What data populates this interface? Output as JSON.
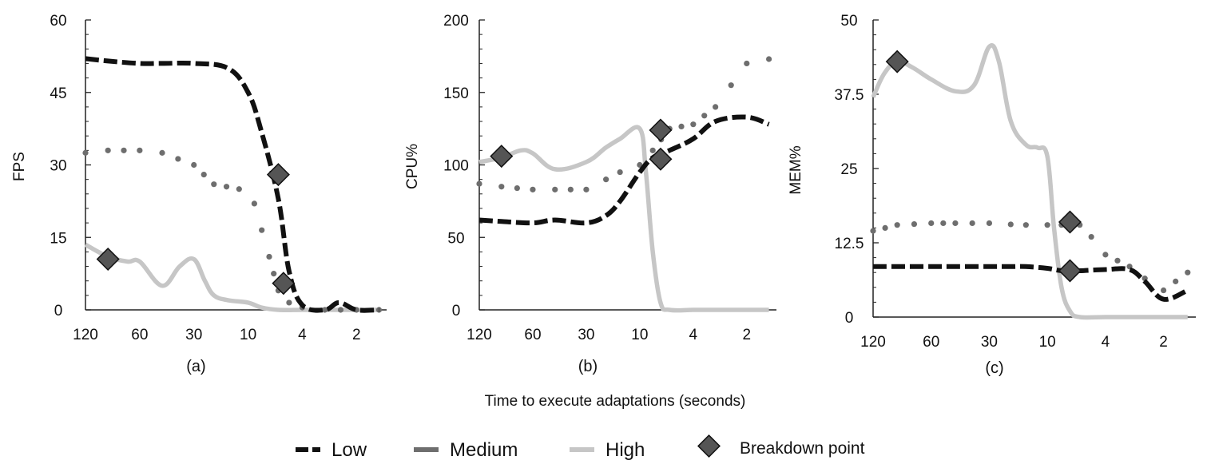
{
  "figure": {
    "xlabel": "Time to execute adaptations (seconds)",
    "colors": {
      "low": "#111111",
      "medium": "#6e6e6e",
      "high": "#c6c6c6",
      "breakdown": "#555555"
    },
    "legend": {
      "low": "Low",
      "medium": "Medium",
      "high": "High",
      "breakdown": "Breakdown point",
      "placement": "bottom-center"
    }
  },
  "chart_data": [
    {
      "type": "line",
      "subplot_label": "(a)",
      "ylabel": "FPS",
      "ylim": [
        0,
        60
      ],
      "yticks": [
        "0",
        "15",
        "30",
        "45",
        "60"
      ],
      "xticks": [
        "120",
        "60",
        "30",
        "10",
        "4",
        "2"
      ],
      "x_scale": "categorical, decreasing left to right",
      "series": [
        {
          "name": "Low",
          "style": "dashed",
          "x": [
            120,
            90,
            60,
            45,
            30,
            15,
            10,
            8,
            6,
            5,
            4,
            3,
            2.5,
            2,
            1.5
          ],
          "y": [
            52,
            51.5,
            51,
            51,
            51,
            50,
            45,
            37,
            23,
            8,
            1,
            0,
            1.5,
            0,
            0
          ]
        },
        {
          "name": "Medium",
          "style": "dotted",
          "x": [
            120,
            90,
            60,
            45,
            30,
            20,
            12,
            9,
            7,
            6,
            5,
            4,
            3,
            2,
            1.5
          ],
          "y": [
            32.5,
            33,
            33,
            32.5,
            30,
            26,
            25,
            22,
            11,
            4,
            1.5,
            0.5,
            0,
            0,
            0
          ]
        },
        {
          "name": "High",
          "style": "solid",
          "x": [
            120,
            90,
            70,
            60,
            45,
            36,
            30,
            24,
            20,
            15,
            10,
            8,
            6,
            4,
            3,
            2,
            1.5
          ],
          "y": [
            13.5,
            11,
            10,
            10,
            5,
            9,
            10.5,
            6,
            3,
            2,
            1.5,
            0.5,
            0,
            0,
            0,
            0,
            0
          ]
        }
      ],
      "breakdown_points": [
        {
          "series": "High",
          "x": 90,
          "y": 10.5
        },
        {
          "series": "Low",
          "x": 6,
          "y": 28
        },
        {
          "series": "Medium",
          "x": 5.5,
          "y": 5.5
        }
      ]
    },
    {
      "type": "line",
      "subplot_label": "(b)",
      "ylabel": "CPU%",
      "ylim": [
        0,
        200
      ],
      "yticks": [
        "0",
        "50",
        "100",
        "150",
        "200"
      ],
      "xticks": [
        "120",
        "60",
        "30",
        "10",
        "4",
        "2"
      ],
      "x_scale": "categorical, decreasing left to right",
      "series": [
        {
          "name": "Low",
          "style": "dashed",
          "x": [
            120,
            90,
            60,
            45,
            30,
            20,
            15,
            10,
            8,
            6,
            4,
            3,
            2,
            1.5
          ],
          "y": [
            62,
            61,
            60,
            62,
            60,
            65,
            75,
            95,
            105,
            110,
            118,
            130,
            133,
            128
          ]
        },
        {
          "name": "Medium",
          "style": "dotted",
          "x": [
            120,
            90,
            60,
            45,
            30,
            20,
            15,
            10,
            8,
            6,
            4,
            3,
            2,
            1.5
          ],
          "y": [
            87,
            85,
            83,
            83,
            83,
            90,
            95,
            100,
            110,
            125,
            128,
            140,
            170,
            173
          ]
        },
        {
          "name": "High",
          "style": "solid",
          "x": [
            120,
            90,
            70,
            60,
            45,
            30,
            20,
            15,
            10,
            9,
            8,
            7,
            6,
            4,
            3,
            2,
            1.5
          ],
          "y": [
            102,
            105,
            110,
            108,
            97,
            102,
            112,
            118,
            125,
            95,
            40,
            5,
            0,
            0,
            0,
            0,
            0
          ]
        }
      ],
      "breakdown_points": [
        {
          "series": "High",
          "x": 90,
          "y": 106
        },
        {
          "series": "Medium",
          "x": 7,
          "y": 124
        },
        {
          "series": "Low",
          "x": 7,
          "y": 104
        }
      ]
    },
    {
      "type": "line",
      "subplot_label": "(c)",
      "ylabel": "MEM%",
      "ylim": [
        0,
        50
      ],
      "yticks": [
        "0",
        "12.5",
        "25",
        "37.5",
        "50"
      ],
      "xticks": [
        "120",
        "60",
        "30",
        "10",
        "4",
        "2"
      ],
      "x_scale": "categorical, decreasing left to right",
      "series": [
        {
          "name": "Low",
          "style": "dashed",
          "x": [
            120,
            90,
            60,
            45,
            30,
            20,
            15,
            10,
            8,
            6,
            4,
            3,
            2.5,
            2,
            1.5
          ],
          "y": [
            8.5,
            8.5,
            8.5,
            8.5,
            8.5,
            8.5,
            8.5,
            8.2,
            7.8,
            7.8,
            8,
            8,
            6,
            3,
            4.5
          ]
        },
        {
          "name": "Medium",
          "style": "dotted",
          "x": [
            120,
            90,
            60,
            45,
            30,
            20,
            15,
            10,
            8,
            6,
            5,
            4,
            3,
            2.5,
            2,
            1.5
          ],
          "y": [
            14.5,
            15.5,
            15.8,
            15.8,
            15.8,
            15.6,
            15.5,
            15.5,
            15.5,
            15.5,
            13.5,
            10.5,
            8.5,
            6.5,
            4.5,
            7.5
          ]
        },
        {
          "name": "High",
          "style": "solid",
          "x": [
            120,
            105,
            90,
            75,
            60,
            45,
            36,
            30,
            25,
            20,
            15,
            12,
            10,
            9,
            8,
            7,
            6,
            4,
            3,
            2,
            1.5
          ],
          "y": [
            37,
            41,
            43,
            42,
            40,
            38,
            39,
            45.5,
            43,
            33,
            29,
            28.5,
            27,
            15,
            5,
            1,
            0,
            0,
            0,
            0,
            0
          ]
        }
      ],
      "breakdown_points": [
        {
          "series": "High",
          "x": 90,
          "y": 43
        },
        {
          "series": "Medium",
          "x": 7,
          "y": 16
        },
        {
          "series": "Low",
          "x": 7,
          "y": 7.8
        }
      ]
    }
  ]
}
